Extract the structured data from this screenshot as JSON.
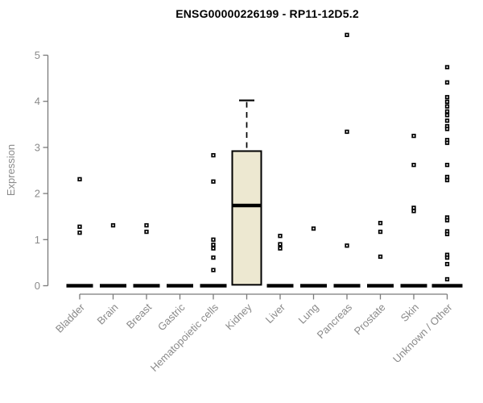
{
  "header": {
    "title": "ENSG00000226199 - RP11-12D5.2"
  },
  "chart_data": {
    "type": "boxplot",
    "title": "ENSG00000226199 - RP11-12D5.2",
    "xlabel": "",
    "ylabel": "Expression",
    "ylim": [
      0,
      5
    ],
    "yticks": [
      0,
      1,
      2,
      3,
      4,
      5
    ],
    "grid": false,
    "legend": false,
    "colors": {
      "box_fill": "#EDE8D1",
      "box_line": "#000000",
      "axis": "#7a7a7a",
      "tick_label": "#8a8a8a",
      "title": "#000000",
      "background": "#ffffff"
    },
    "categories": [
      "Bladder",
      "Brain",
      "Breast",
      "Gastric",
      "Hematopoietic cells",
      "Kidney",
      "Liver",
      "Lung",
      "Pancreas",
      "Prostate",
      "Skin",
      "Unknown / Other"
    ],
    "boxes": [
      {
        "category": "Bladder",
        "median": 0,
        "q1": 0,
        "q3": 0,
        "whisker_low": 0,
        "whisker_high": 0,
        "outliers": [
          2.31,
          1.28,
          1.15
        ]
      },
      {
        "category": "Brain",
        "median": 0,
        "q1": 0,
        "q3": 0,
        "whisker_low": 0,
        "whisker_high": 0,
        "outliers": [
          1.31
        ]
      },
      {
        "category": "Breast",
        "median": 0,
        "q1": 0,
        "q3": 0,
        "whisker_low": 0,
        "whisker_high": 0,
        "outliers": [
          1.31,
          1.17
        ]
      },
      {
        "category": "Gastric",
        "median": 0,
        "q1": 0,
        "q3": 0,
        "whisker_low": 0,
        "whisker_high": 0,
        "outliers": []
      },
      {
        "category": "Hematopoietic cells",
        "median": 0,
        "q1": 0,
        "q3": 0,
        "whisker_low": 0,
        "whisker_high": 0,
        "outliers": [
          2.83,
          2.26,
          1.0,
          0.89,
          0.81,
          0.61,
          0.34
        ]
      },
      {
        "category": "Kidney",
        "median": 1.74,
        "q1": 0.02,
        "q3": 2.92,
        "whisker_low": 0.02,
        "whisker_high": 4.02,
        "outliers": []
      },
      {
        "category": "Liver",
        "median": 0,
        "q1": 0,
        "q3": 0,
        "whisker_low": 0,
        "whisker_high": 0,
        "outliers": [
          1.08,
          0.9,
          0.81
        ]
      },
      {
        "category": "Lung",
        "median": 0,
        "q1": 0,
        "q3": 0,
        "whisker_low": 0,
        "whisker_high": 0,
        "outliers": [
          1.24
        ]
      },
      {
        "category": "Pancreas",
        "median": 0,
        "q1": 0,
        "q3": 0,
        "whisker_low": 0,
        "whisker_high": 0,
        "outliers": [
          5.44,
          3.34,
          0.87
        ]
      },
      {
        "category": "Prostate",
        "median": 0,
        "q1": 0,
        "q3": 0,
        "whisker_low": 0,
        "whisker_high": 0,
        "outliers": [
          1.36,
          1.17,
          0.63
        ]
      },
      {
        "category": "Skin",
        "median": 0,
        "q1": 0,
        "q3": 0,
        "whisker_low": 0,
        "whisker_high": 0,
        "outliers": [
          3.25,
          2.62,
          1.69,
          1.62
        ]
      },
      {
        "category": "Unknown / Other",
        "median": 0,
        "q1": 0,
        "q3": 0,
        "whisker_low": 0,
        "whisker_high": 0,
        "outliers": [
          4.74,
          4.41,
          4.09,
          3.99,
          3.89,
          3.78,
          3.7,
          3.58,
          3.46,
          3.4,
          3.16,
          3.1,
          2.62,
          2.36,
          2.29,
          1.48,
          1.42,
          1.18,
          1.12,
          0.67,
          0.61,
          0.47,
          0.14
        ]
      }
    ]
  }
}
